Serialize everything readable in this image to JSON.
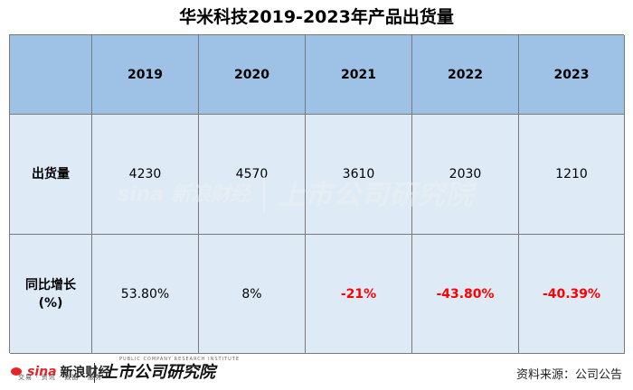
{
  "title": "华米科技2019-2023年产品出货量",
  "table": {
    "header": [
      "",
      "2019",
      "2020",
      "2021",
      "2022",
      "2023"
    ],
    "rows": [
      {
        "label": "出货量",
        "values": [
          "4230",
          "4570",
          "3610",
          "2030",
          "1210"
        ]
      },
      {
        "label_line1": "同比增长",
        "label_line2": "(%)",
        "values": [
          "53.80%",
          "8%",
          "-21%",
          "-43.80%",
          "-40.39%"
        ]
      }
    ]
  },
  "watermark": {
    "logo_text": "sina 新浪财经",
    "logo_subtext": "交易 · 资讯 · 数据 · 服务",
    "brand_text": "上市公司研究院"
  },
  "footer": {
    "logo_sina": "sina",
    "logo_cj": "新浪财经",
    "logo_subtext": "交易 · 资讯 · 数据 · 服务",
    "brand_text": "上市公司研究院",
    "brand_subtext": "PUBLIC COMPANY RESEARCH INSTITUTE",
    "source": "资料来源：公司公告"
  },
  "colors": {
    "header_bg": "#9dc2e6",
    "body_bg": "#deebf7",
    "negative": "#ff0000",
    "border": "#7a7a7a"
  }
}
